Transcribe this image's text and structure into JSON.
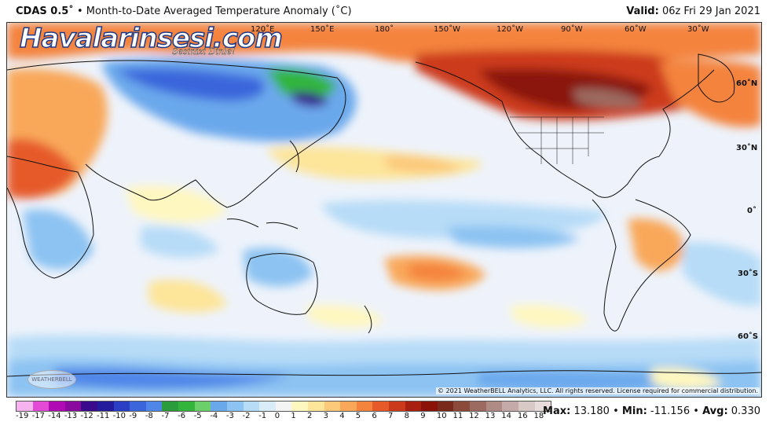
{
  "header": {
    "model": "CDAS 0.5˚",
    "bullet": "•",
    "product": "Month-to-Date Averaged Temperature Anomaly (˚C)",
    "valid_label": "Valid:",
    "valid_time": "06z Fri 29 Jan 2021"
  },
  "watermark": {
    "brand": "Havalarinsesi.com",
    "tagline": "Sesinizi Dinle!"
  },
  "map": {
    "lon_labels": [
      "120˚E",
      "150˚E",
      "180˚",
      "150˚W",
      "120˚W",
      "90˚W",
      "60˚W",
      "30˚W"
    ],
    "lat_labels": [
      "60˚N",
      "30˚N",
      "0˚",
      "30˚S",
      "60˚S"
    ],
    "provider_logo": "WEATHERBELL",
    "copyright": "© 2021 WeatherBELL Analytics, LLC. All rights reserved. License required for commercial distribution."
  },
  "colorbar": {
    "labels": [
      "-19",
      "-17",
      "-14",
      "-13",
      "-12",
      "-11",
      "-10",
      "-9",
      "-8",
      "-7",
      "-6",
      "-5",
      "-4",
      "-3",
      "-2",
      "-1",
      "0",
      "1",
      "2",
      "3",
      "4",
      "5",
      "6",
      "7",
      "8",
      "9",
      "10",
      "11",
      "12",
      "13",
      "14",
      "16",
      "18"
    ],
    "colors": [
      "#f7b3f0",
      "#e34bd6",
      "#b00ab5",
      "#8a0aa0",
      "#3a0a8c",
      "#241a9c",
      "#2a3fc6",
      "#3b66db",
      "#4f86e8",
      "#2a9c3c",
      "#33b53c",
      "#6cd06a",
      "#6aa8ec",
      "#8cc3f2",
      "#b7dcf7",
      "#d9ecfa",
      "#f4f4f4",
      "#fff7c0",
      "#fde59a",
      "#fcc97a",
      "#f9a85a",
      "#f4833d",
      "#e65a2a",
      "#cc3a1c",
      "#a82010",
      "#8a1208",
      "#7a2a1a",
      "#8c4a3a",
      "#9c6a60",
      "#b08a85",
      "#c4aaa8",
      "#d8c8c6",
      "#e8dcdb"
    ]
  },
  "stats": {
    "max_label": "Max:",
    "max_value": "13.180",
    "min_label": "Min:",
    "min_value": "-11.156",
    "avg_label": "Avg:",
    "avg_value": "0.330"
  }
}
